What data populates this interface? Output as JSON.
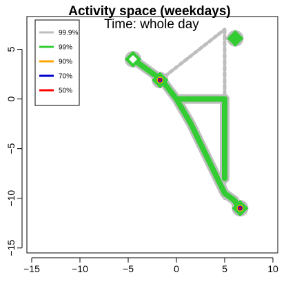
{
  "chart_data": {
    "type": "line",
    "title": "Activity space (weekdays)",
    "subtitle": "Time:   whole day",
    "xlabel": "",
    "ylabel": "",
    "xlim": [
      -15.5,
      10.5
    ],
    "ylim": [
      -15.5,
      8.3
    ],
    "xticks": [
      -15,
      -10,
      -5,
      0,
      5,
      10
    ],
    "xtick_labels": [
      "−15",
      "−10",
      "−5",
      "0",
      "5",
      "10"
    ],
    "yticks": [
      -15,
      -10,
      -5,
      0,
      5
    ],
    "ytick_labels": [
      "−15",
      "−10",
      "−5",
      "0",
      "5"
    ],
    "grid": false,
    "legend_position": "top-left",
    "series": [
      {
        "name": "99.9%",
        "color": "#bebebe",
        "paths": [
          [
            [
              -1.7,
              1.9
            ],
            [
              5,
              7
            ]
          ],
          [
            [
              5,
              7
            ],
            [
              5,
              0
            ]
          ],
          [
            [
              5,
              6.1
            ],
            [
              6.1,
              6.1
            ]
          ],
          [
            [
              -0.1,
              0.1
            ],
            [
              5,
              0.1
            ]
          ],
          [
            [
              5,
              0
            ],
            [
              5,
              -10
            ]
          ]
        ]
      },
      {
        "name": "99%",
        "color": "#33cc33",
        "paths": [
          [
            [
              -4.5,
              4
            ],
            [
              -1.5,
              1.9
            ],
            [
              0,
              0
            ],
            [
              1.5,
              -2.5
            ],
            [
              3,
              -5.5
            ],
            [
              5,
              -9.5
            ],
            [
              6,
              -10.2
            ],
            [
              6.5,
              -11
            ]
          ],
          [
            [
              5,
              0
            ],
            [
              5,
              -8
            ]
          ],
          [
            [
              0,
              0
            ],
            [
              5,
              0
            ]
          ]
        ],
        "blobs": [
          [
            -4.5,
            4
          ],
          [
            6.1,
            6.1
          ],
          [
            -1.7,
            1.9
          ],
          [
            6.6,
            -11
          ]
        ]
      },
      {
        "name": "90%",
        "color": "#ffa500",
        "points": [
          [
            -1.7,
            1.9
          ],
          [
            6.6,
            -11
          ]
        ]
      },
      {
        "name": "70%",
        "color": "#0000cd",
        "points": [
          [
            -1.7,
            1.9
          ],
          [
            6.6,
            -11
          ]
        ]
      },
      {
        "name": "50%",
        "color": "#ff0000",
        "points": [
          [
            -1.7,
            1.9
          ],
          [
            6.6,
            -11
          ]
        ]
      }
    ]
  }
}
